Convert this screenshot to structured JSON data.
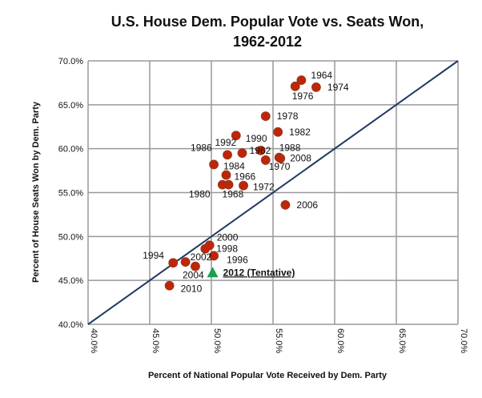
{
  "chart_data": {
    "type": "scatter",
    "title": "U.S. House Dem. Popular Vote vs. Seats Won,",
    "title_line2": "1962-2012",
    "xlabel": "Percent of National Popular Vote Received by Dem. Party",
    "ylabel": "Percent of House Seats Won by Dem. Party",
    "xlim": [
      40,
      70
    ],
    "ylim": [
      40,
      70
    ],
    "x_ticks": [
      "40.0%",
      "45.0%",
      "50.0%",
      "55.0%",
      "60.0%",
      "65.0%",
      "70.0%"
    ],
    "y_ticks": [
      "40.0%",
      "45.0%",
      "50.0%",
      "55.0%",
      "60.0%",
      "65.0%",
      "70.0%"
    ],
    "grid": true,
    "reference_line": {
      "from": [
        40,
        40
      ],
      "to": [
        70,
        70
      ],
      "color": "#1f3864"
    },
    "point_color": "#c0250a",
    "highlight_color": "#1aa050",
    "points": [
      {
        "label": "1962",
        "x": 54.0,
        "y": 59.8
      },
      {
        "label": "1964",
        "x": 57.3,
        "y": 67.8
      },
      {
        "label": "1966",
        "x": 51.2,
        "y": 57.0
      },
      {
        "label": "1968",
        "x": 51.4,
        "y": 55.9
      },
      {
        "label": "1970",
        "x": 54.4,
        "y": 58.7
      },
      {
        "label": "1972",
        "x": 52.6,
        "y": 55.8
      },
      {
        "label": "1974",
        "x": 58.5,
        "y": 67.0
      },
      {
        "label": "1976",
        "x": 56.8,
        "y": 67.1
      },
      {
        "label": "1978",
        "x": 54.4,
        "y": 63.7
      },
      {
        "label": "1980",
        "x": 50.9,
        "y": 55.9
      },
      {
        "label": "1982",
        "x": 55.4,
        "y": 61.9
      },
      {
        "label": "1984",
        "x": 50.2,
        "y": 58.2
      },
      {
        "label": "1986",
        "x": 51.3,
        "y": 59.3
      },
      {
        "label": "1988",
        "x": 55.5,
        "y": 59.0
      },
      {
        "label": "1990",
        "x": 52.0,
        "y": 61.5
      },
      {
        "label": "1992",
        "x": 52.5,
        "y": 59.5
      },
      {
        "label": "1994",
        "x": 46.9,
        "y": 47.0
      },
      {
        "label": "1996",
        "x": 50.2,
        "y": 47.8
      },
      {
        "label": "1998",
        "x": 49.5,
        "y": 48.6
      },
      {
        "label": "2000",
        "x": 49.85,
        "y": 49.0
      },
      {
        "label": "2002",
        "x": 47.9,
        "y": 47.1
      },
      {
        "label": "2004",
        "x": 48.7,
        "y": 46.6
      },
      {
        "label": "2006",
        "x": 56.0,
        "y": 53.6
      },
      {
        "label": "2008",
        "x": 55.6,
        "y": 58.9
      },
      {
        "label": "2010",
        "x": 46.6,
        "y": 44.4
      }
    ],
    "highlight_point": {
      "label": "2012 (Tentative)",
      "x": 50.1,
      "y": 45.9
    }
  }
}
